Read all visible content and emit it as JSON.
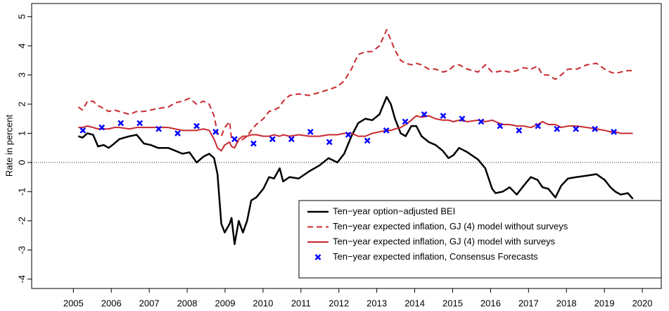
{
  "chart_data": {
    "type": "line",
    "y_label": "Rate in percent",
    "xlim": [
      2003.9,
      2020.5
    ],
    "ylim": [
      -4.32,
      5.45
    ],
    "xticks": [
      2005,
      2006,
      2007,
      2008,
      2009,
      2010,
      2011,
      2012,
      2013,
      2014,
      2015,
      2016,
      2017,
      2018,
      2019,
      2020
    ],
    "yticks": [
      -4,
      -3,
      -2,
      -1,
      0,
      1,
      2,
      3,
      4,
      5
    ],
    "reference_line": 0,
    "legend": "bottom-right",
    "x": [
      2005.13,
      2005.24,
      2005.37,
      2005.52,
      2005.65,
      2005.8,
      2005.93,
      2006.08,
      2006.21,
      2006.48,
      2006.67,
      2006.86,
      2007.04,
      2007.23,
      2007.5,
      2007.69,
      2007.88,
      2008.06,
      2008.25,
      2008.43,
      2008.58,
      2008.71,
      2008.8,
      2008.9,
      2008.99,
      2009.12,
      2009.17,
      2009.25,
      2009.36,
      2009.47,
      2009.58,
      2009.69,
      2009.82,
      2010.01,
      2010.16,
      2010.29,
      2010.44,
      2010.53,
      2010.7,
      2010.94,
      2011.22,
      2011.49,
      2011.73,
      2011.96,
      2012.14,
      2012.33,
      2012.51,
      2012.7,
      2012.88,
      2013.07,
      2013.26,
      2013.37,
      2013.48,
      2013.63,
      2013.76,
      2013.91,
      2014.04,
      2014.18,
      2014.37,
      2014.55,
      2014.74,
      2014.89,
      2015.02,
      2015.17,
      2015.39,
      2015.67,
      2015.86,
      2016.04,
      2016.13,
      2016.32,
      2016.5,
      2016.69,
      2016.87,
      2017.06,
      2017.24,
      2017.37,
      2017.52,
      2017.71,
      2017.86,
      2018.04,
      2018.27,
      2018.54,
      2018.79,
      2019.01,
      2019.16,
      2019.29,
      2019.43,
      2019.62,
      2019.75
    ],
    "series": [
      {
        "name": "Ten−year option−adjusted BEI",
        "color": "#000000",
        "style": "solid",
        "width": 2.5,
        "values": [
          0.9,
          0.85,
          1.0,
          0.95,
          0.55,
          0.6,
          0.5,
          0.65,
          0.8,
          0.9,
          0.95,
          0.65,
          0.6,
          0.5,
          0.5,
          0.4,
          0.3,
          0.35,
          0.0,
          0.2,
          0.3,
          0.15,
          -0.4,
          -2.1,
          -2.4,
          -2.1,
          -1.9,
          -2.8,
          -2.0,
          -2.4,
          -2.0,
          -1.3,
          -1.2,
          -0.9,
          -0.5,
          -0.55,
          -0.2,
          -0.65,
          -0.5,
          -0.55,
          -0.3,
          -0.1,
          0.15,
          0.0,
          0.3,
          0.9,
          1.35,
          1.5,
          1.45,
          1.65,
          2.25,
          2.0,
          1.5,
          1.0,
          0.9,
          1.25,
          1.25,
          0.9,
          0.7,
          0.6,
          0.4,
          0.15,
          0.25,
          0.5,
          0.35,
          0.1,
          -0.2,
          -0.9,
          -1.05,
          -1.0,
          -0.85,
          -1.1,
          -0.8,
          -0.5,
          -0.6,
          -0.85,
          -0.9,
          -1.2,
          -0.8,
          -0.55,
          -0.5,
          -0.45,
          -0.4,
          -0.6,
          -0.85,
          -1.0,
          -1.1,
          -1.05,
          -1.25
        ]
      },
      {
        "name": "Ten−year expected inflation, GJ (4) model without surveys",
        "color": "#c8282e",
        "style": "dashed",
        "width": 2,
        "values": [
          1.9,
          1.8,
          2.1,
          2.1,
          1.95,
          1.85,
          1.75,
          1.8,
          1.75,
          1.65,
          1.75,
          1.75,
          1.8,
          1.85,
          1.9,
          2.05,
          2.1,
          2.2,
          2.0,
          2.1,
          2.0,
          1.6,
          1.0,
          0.9,
          1.2,
          1.4,
          0.8,
          0.8,
          0.7,
          0.8,
          0.9,
          1.1,
          1.3,
          1.5,
          1.75,
          1.8,
          1.9,
          2.1,
          2.3,
          2.35,
          2.3,
          2.4,
          2.5,
          2.6,
          2.8,
          3.2,
          3.7,
          3.8,
          3.8,
          4.0,
          4.55,
          4.2,
          3.85,
          3.5,
          3.4,
          3.35,
          3.4,
          3.35,
          3.2,
          3.2,
          3.1,
          3.15,
          3.3,
          3.35,
          3.2,
          3.1,
          3.35,
          3.1,
          3.1,
          3.15,
          3.1,
          3.15,
          3.25,
          3.2,
          3.3,
          3.0,
          3.0,
          2.85,
          3.0,
          3.2,
          3.2,
          3.35,
          3.4,
          3.2,
          3.1,
          3.05,
          3.1,
          3.15,
          3.15
        ]
      },
      {
        "name": "Ten−year expected inflation, GJ (4) model with surveys",
        "color": "#c8282e",
        "style": "solid",
        "width": 2,
        "values": [
          1.2,
          1.2,
          1.25,
          1.2,
          1.15,
          1.15,
          1.15,
          1.2,
          1.2,
          1.15,
          1.2,
          1.2,
          1.2,
          1.2,
          1.2,
          1.15,
          1.1,
          1.1,
          1.1,
          1.15,
          1.1,
          0.8,
          0.5,
          0.4,
          0.6,
          0.7,
          0.55,
          0.5,
          0.8,
          0.9,
          0.9,
          0.95,
          0.95,
          0.9,
          0.9,
          0.95,
          0.9,
          0.95,
          0.9,
          0.95,
          0.9,
          0.9,
          0.95,
          0.95,
          1.0,
          1.0,
          0.9,
          0.9,
          1.0,
          1.05,
          1.1,
          1.1,
          1.15,
          1.2,
          1.3,
          1.45,
          1.6,
          1.55,
          1.6,
          1.5,
          1.45,
          1.45,
          1.4,
          1.45,
          1.4,
          1.45,
          1.4,
          1.45,
          1.4,
          1.3,
          1.3,
          1.25,
          1.25,
          1.2,
          1.3,
          1.4,
          1.3,
          1.3,
          1.2,
          1.25,
          1.25,
          1.2,
          1.15,
          1.1,
          1.05,
          1.05,
          1.0,
          1.0,
          1.0
        ]
      },
      {
        "name": "Ten−year expected inflation, Consensus Forecasts",
        "color": "#0000ff",
        "style": "cross",
        "width": 2.5,
        "x": [
          2005.25,
          2005.75,
          2006.25,
          2006.75,
          2007.25,
          2007.75,
          2008.25,
          2008.75,
          2009.25,
          2009.75,
          2010.25,
          2010.75,
          2011.25,
          2011.75,
          2012.25,
          2012.75,
          2013.25,
          2013.75,
          2014.25,
          2014.75,
          2015.25,
          2015.75,
          2016.25,
          2016.75,
          2017.25,
          2017.75,
          2018.25,
          2018.75,
          2019.25
        ],
        "values": [
          1.1,
          1.2,
          1.35,
          1.35,
          1.15,
          1.0,
          1.25,
          1.05,
          0.8,
          0.65,
          0.8,
          0.8,
          1.05,
          0.7,
          0.95,
          0.75,
          1.1,
          1.4,
          1.65,
          1.6,
          1.5,
          1.4,
          1.25,
          1.1,
          1.25,
          1.15,
          1.15,
          1.15,
          1.05
        ]
      }
    ]
  }
}
